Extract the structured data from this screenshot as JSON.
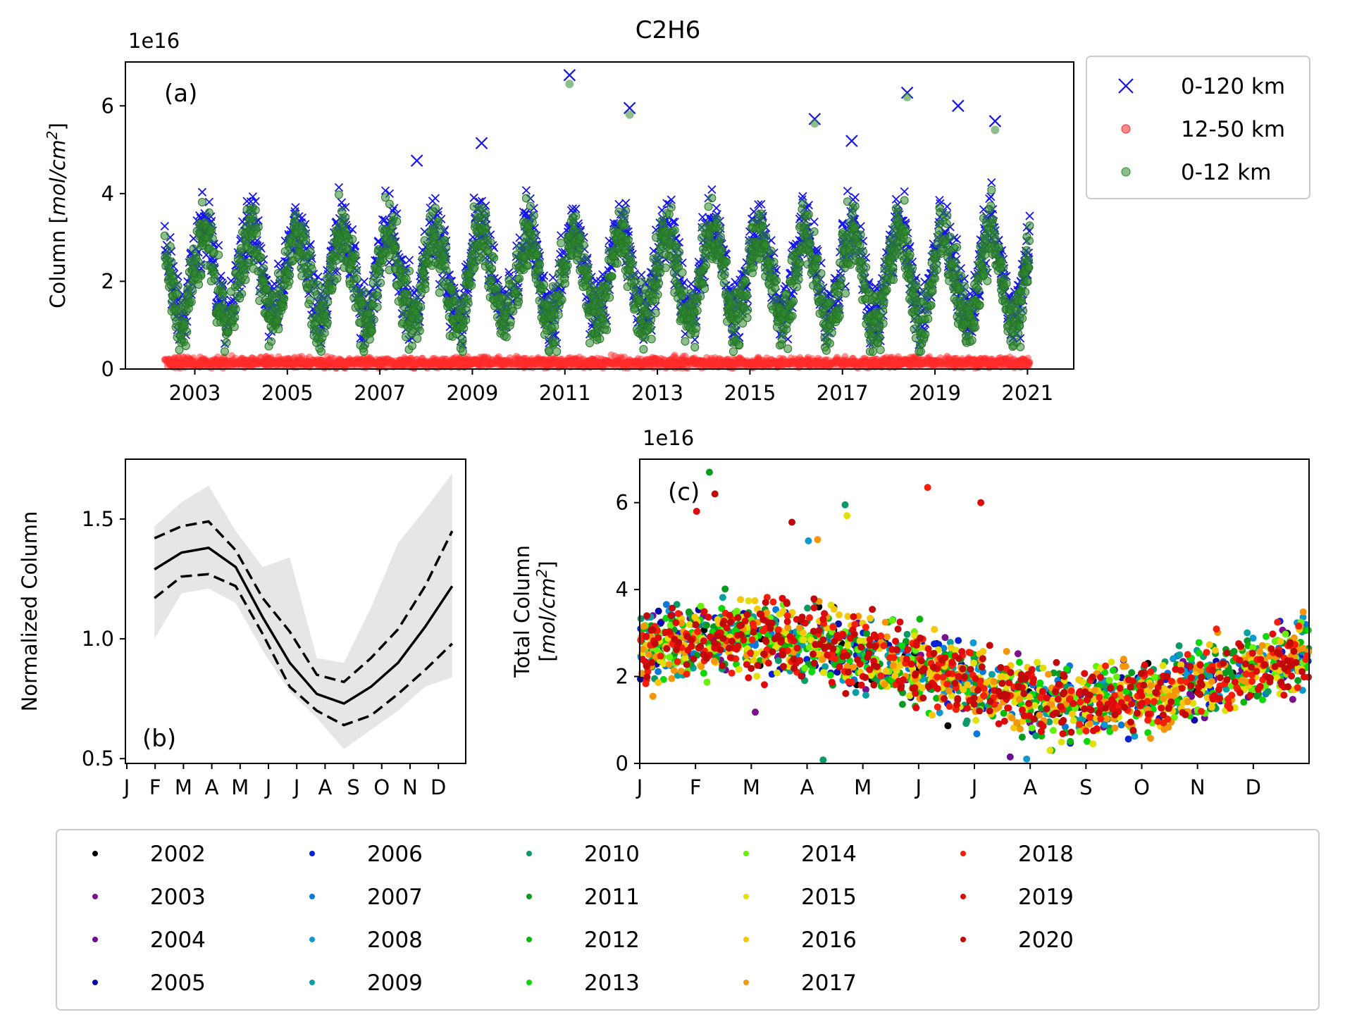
{
  "figure": {
    "title": "C2H6"
  },
  "chart_data": [
    {
      "panel_label": "(a)",
      "type": "scatter",
      "ylabel": "Column [mol/cm²]",
      "y_multiplier": "1e16",
      "ylim": [
        0,
        7
      ],
      "yticks": [
        0,
        2,
        4,
        6
      ],
      "xlim": [
        2001.5,
        2022
      ],
      "xticks": [
        2003,
        2005,
        2007,
        2009,
        2011,
        2013,
        2015,
        2017,
        2019,
        2021
      ],
      "x_data_range": [
        2002.35,
        2021.05
      ],
      "legend_position": "outside-right",
      "series": [
        {
          "name": "0-120 km",
          "marker": "x",
          "color": "#1515ee",
          "approx_mean": 2.2,
          "approx_seasonal_amplitude": 1.0,
          "outliers": [
            [
              2011.1,
              6.7
            ],
            [
              2012.4,
              5.95
            ],
            [
              2018.4,
              6.3
            ],
            [
              2009.2,
              5.15
            ],
            [
              2016.4,
              5.7
            ],
            [
              2019.5,
              6.0
            ],
            [
              2020.3,
              5.65
            ],
            [
              2017.2,
              5.2
            ],
            [
              2007.8,
              4.75
            ]
          ]
        },
        {
          "name": "12-50 km",
          "marker": "circle",
          "color": "#ff2a2a",
          "approx_mean": 0.15,
          "approx_max": 0.45
        },
        {
          "name": "0-12 km",
          "marker": "circle",
          "color": "#2e8b2e",
          "approx_mean": 2.05,
          "approx_seasonal_amplitude": 1.0,
          "outliers": [
            [
              2011.1,
              6.5
            ],
            [
              2012.4,
              5.8
            ],
            [
              2018.4,
              6.2
            ],
            [
              2016.4,
              5.6
            ],
            [
              2020.3,
              5.45
            ]
          ]
        }
      ]
    },
    {
      "panel_label": "(b)",
      "type": "line",
      "ylabel": "Normalized Column",
      "ylim": [
        0.48,
        1.75
      ],
      "yticks": [
        0.5,
        1.0,
        1.5
      ],
      "ytick_labels": [
        "0.5",
        "1.0",
        "1.5"
      ],
      "xticks": [
        "J",
        "F",
        "M",
        "A",
        "M",
        "J",
        "J",
        "A",
        "S",
        "O",
        "N",
        "D"
      ],
      "x": [
        0.5,
        1.5,
        2.5,
        3.5,
        4.5,
        5.5,
        6.5,
        7.5,
        8.5,
        9.5,
        10.5,
        11.5
      ],
      "series": [
        {
          "role": "mean",
          "style": "solid",
          "values": [
            1.29,
            1.36,
            1.38,
            1.3,
            1.09,
            0.9,
            0.77,
            0.73,
            0.8,
            0.9,
            1.05,
            1.22
          ]
        },
        {
          "role": "upper",
          "style": "dashed",
          "values": [
            1.42,
            1.47,
            1.49,
            1.37,
            1.17,
            1.03,
            0.85,
            0.82,
            0.92,
            1.04,
            1.22,
            1.45
          ]
        },
        {
          "role": "lower",
          "style": "dashed",
          "values": [
            1.17,
            1.26,
            1.27,
            1.22,
            1.02,
            0.8,
            0.7,
            0.64,
            0.68,
            0.77,
            0.87,
            0.98
          ]
        }
      ],
      "shaded_band": {
        "color": "#e6e6e6",
        "upper": [
          1.47,
          1.57,
          1.64,
          1.45,
          1.3,
          1.34,
          0.92,
          0.9,
          1.13,
          1.4,
          1.54,
          1.69
        ],
        "lower": [
          1.0,
          1.19,
          1.21,
          1.15,
          0.95,
          0.78,
          0.67,
          0.54,
          0.62,
          0.7,
          0.8,
          0.84
        ]
      }
    },
    {
      "panel_label": "(c)",
      "type": "scatter",
      "ylabel": "Total Column [mol/cm²]",
      "y_multiplier": "1e16",
      "ylim": [
        0,
        7
      ],
      "yticks": [
        0,
        2,
        4,
        6
      ],
      "xlim": [
        0,
        12
      ],
      "xticks": [
        "J",
        "F",
        "M",
        "A",
        "M",
        "J",
        "J",
        "A",
        "S",
        "O",
        "N",
        "D"
      ],
      "approx_seasonal_mean": [
        2.8,
        2.9,
        2.95,
        2.7,
        2.4,
        2.0,
        1.6,
        1.4,
        1.45,
        1.65,
        2.0,
        2.35
      ],
      "outliers": [
        {
          "year": "2011",
          "day_of_year": 38,
          "value": 6.7
        },
        {
          "year": "2018",
          "day_of_year": 157,
          "value": 6.35
        },
        {
          "year": "2020",
          "day_of_year": 41,
          "value": 6.2
        },
        {
          "year": "2019",
          "day_of_year": 186,
          "value": 6.0
        },
        {
          "year": "2010",
          "day_of_year": 112,
          "value": 5.95
        },
        {
          "year": "2019",
          "day_of_year": 31,
          "value": 5.8
        },
        {
          "year": "2015",
          "day_of_year": 113,
          "value": 5.7
        },
        {
          "year": "2020",
          "day_of_year": 83,
          "value": 5.55
        },
        {
          "year": "2008",
          "day_of_year": 92,
          "value": 5.12
        },
        {
          "year": "2017",
          "day_of_year": 97,
          "value": 5.15
        },
        {
          "year": "2003",
          "day_of_year": 63,
          "value": 1.18
        },
        {
          "year": "2004",
          "day_of_year": 202,
          "value": 0.15
        },
        {
          "year": "2010",
          "day_of_year": 100,
          "value": 0.08
        },
        {
          "year": "2008",
          "day_of_year": 211,
          "value": 0.1
        }
      ],
      "legend_position": "below",
      "legend": [
        {
          "label": "2002",
          "color": "#000000"
        },
        {
          "label": "2003",
          "color": "#7b0f8c"
        },
        {
          "label": "2004",
          "color": "#6d0c99"
        },
        {
          "label": "2005",
          "color": "#0a0aa8"
        },
        {
          "label": "2006",
          "color": "#0a22d6"
        },
        {
          "label": "2007",
          "color": "#0a78d8"
        },
        {
          "label": "2008",
          "color": "#0a9ad0"
        },
        {
          "label": "2009",
          "color": "#0aa0a0"
        },
        {
          "label": "2010",
          "color": "#0a9a66"
        },
        {
          "label": "2011",
          "color": "#0a9a22"
        },
        {
          "label": "2012",
          "color": "#0ab80a"
        },
        {
          "label": "2013",
          "color": "#0ad80a"
        },
        {
          "label": "2014",
          "color": "#66f00a"
        },
        {
          "label": "2015",
          "color": "#e0e00a"
        },
        {
          "label": "2016",
          "color": "#f5c80a"
        },
        {
          "label": "2017",
          "color": "#f5960a"
        },
        {
          "label": "2018",
          "color": "#f51e0a"
        },
        {
          "label": "2019",
          "color": "#dc0a0a"
        },
        {
          "label": "2020",
          "color": "#c00a0a"
        }
      ]
    }
  ]
}
